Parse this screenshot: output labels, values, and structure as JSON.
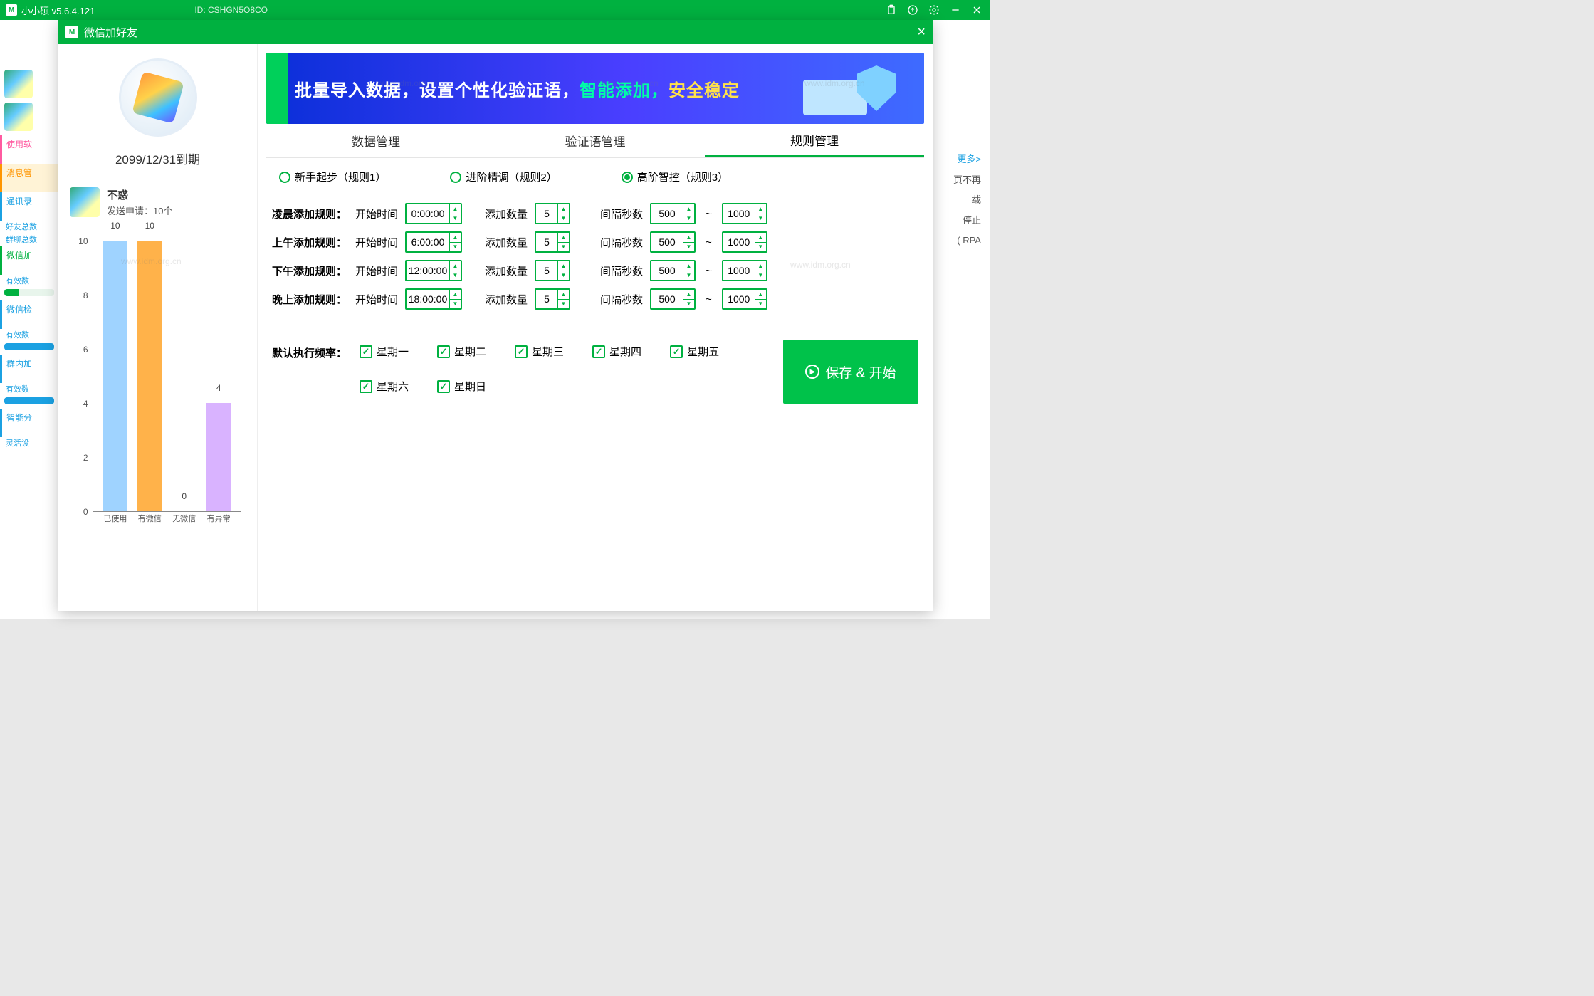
{
  "mainWindow": {
    "title": "小小硕  v5.6.4.121",
    "id": "ID: CSHGN5O8CO"
  },
  "leftNav": {
    "items": [
      {
        "label": "使用软",
        "cls": "pink"
      },
      {
        "label": "消息管",
        "cls": "orange"
      },
      {
        "label": "通讯录",
        "cls": "blue",
        "subs": [
          "好友总数",
          "群聊总数"
        ]
      },
      {
        "label": "微信加",
        "cls": "green",
        "subs": [
          "有效数"
        ],
        "bar": "green"
      },
      {
        "label": "微信检",
        "cls": "blue",
        "subs": [
          "有效数"
        ],
        "bar": "blue"
      },
      {
        "label": "群内加",
        "cls": "blue",
        "subs": [
          "有效数"
        ],
        "bar": "blue"
      },
      {
        "label": "智能分",
        "cls": "blue",
        "subs": [
          "灵活设"
        ]
      }
    ]
  },
  "rightInfo": {
    "more": "更多>",
    "lines": [
      "页不再",
      "载",
      "停止",
      "( RPA"
    ]
  },
  "dialog": {
    "title": "微信加好友",
    "expiry": "2099/12/31到期",
    "user": {
      "name": "不惑",
      "sub": "发送申请：10个"
    },
    "chart": {
      "type": "bar",
      "ymax": 10,
      "ytick": 2,
      "categories": [
        "已使用",
        "有微信",
        "无微信",
        "有异常"
      ],
      "values": [
        10,
        10,
        0,
        4
      ],
      "colors": [
        "#9fd3ff",
        "#ffb24a",
        "#d9b3ff",
        "#d9b3ff"
      ],
      "axis_color": "#888",
      "label_color": "#555",
      "label_fontsize": 12
    },
    "banner": {
      "t1": "批量导入数据，设置个性化验证语，",
      "t2": "智能添加，",
      "t3": "安全稳定"
    },
    "tabs": [
      "数据管理",
      "验证语管理",
      "规则管理"
    ],
    "activeTab": 2,
    "radios": [
      "新手起步（规则1）",
      "进阶精调（规则2）",
      "高阶智控（规则3）"
    ],
    "activeRadio": 2,
    "ruleLabels": {
      "start": "开始时间",
      "count": "添加数量",
      "interval": "间隔秒数"
    },
    "rules": [
      {
        "name": "凌晨添加规则：",
        "time": "0:00:00",
        "count": "5",
        "min": "500",
        "max": "1000"
      },
      {
        "name": "上午添加规则：",
        "time": "6:00:00",
        "count": "5",
        "min": "500",
        "max": "1000"
      },
      {
        "name": "下午添加规则：",
        "time": "12:00:00",
        "count": "5",
        "min": "500",
        "max": "1000"
      },
      {
        "name": "晚上添加规则：",
        "time": "18:00:00",
        "count": "5",
        "min": "500",
        "max": "1000"
      }
    ],
    "freqLabel": "默认执行频率：",
    "days": [
      "星期一",
      "星期二",
      "星期三",
      "星期四",
      "星期五",
      "星期六",
      "星期日"
    ],
    "saveBtn": "保存 & 开始"
  },
  "watermark": "www.idm.org.cn"
}
